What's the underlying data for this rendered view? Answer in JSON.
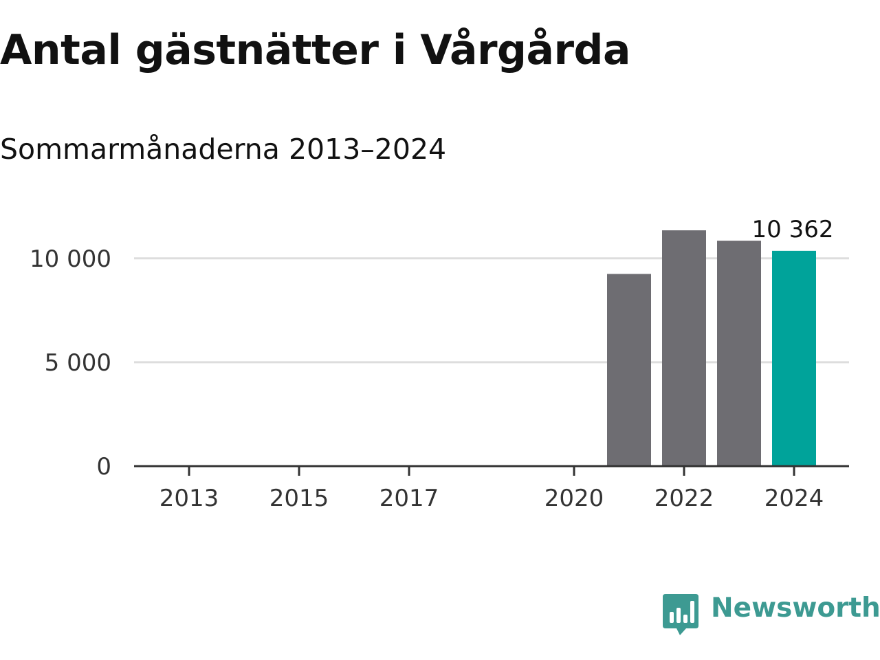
{
  "chart_data": {
    "type": "bar",
    "title": "Antal gästnätter i Vårgårda",
    "subtitle": "Sommarmånaderna 2013–2024",
    "x": [
      2021,
      2022,
      2023,
      2024
    ],
    "values": [
      9250,
      11350,
      10850,
      10362
    ],
    "highlight_index": 3,
    "data_label": "10 362",
    "x_ticks": [
      2013,
      2015,
      2017,
      2020,
      2022,
      2024
    ],
    "x_tick_labels": [
      "2013",
      "2015",
      "2017",
      "2020",
      "2022",
      "2024"
    ],
    "xlim": [
      2012,
      2025
    ],
    "y_ticks": [
      0,
      5000,
      10000
    ],
    "y_tick_labels": [
      "0",
      "5 000",
      "10 000"
    ],
    "ylim": [
      0,
      11350
    ],
    "grid": "horizontal",
    "colors": {
      "bar": "#6e6d72",
      "highlight": "#00a39a",
      "grid": "#dddddd",
      "axis": "#333333"
    }
  },
  "branding": {
    "logo_text": "Newsworthy",
    "logo_icon": "chart-speech-bubble-icon",
    "logo_color": "#3d9a92"
  }
}
